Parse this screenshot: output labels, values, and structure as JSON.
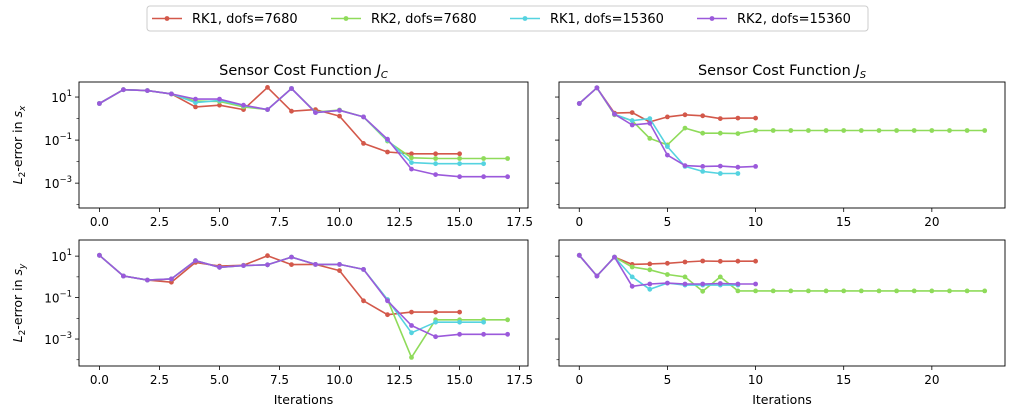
{
  "legend": {
    "placement": "top-center",
    "entries": [
      {
        "label": "RK1, dofs=7680",
        "color": "#d3584a"
      },
      {
        "label": "RK2, dofs=7680",
        "color": "#8fdb5a"
      },
      {
        "label": "RK1, dofs=15360",
        "color": "#55d3e0"
      },
      {
        "label": "RK2, dofs=15360",
        "color": "#9b59db"
      }
    ]
  },
  "xlabel": "Iterations",
  "chart_data": [
    {
      "type": "line",
      "panel": "top-left",
      "title": "Sensor Cost Function J_C",
      "title_text": "Sensor Cost Function ",
      "title_math": "J",
      "title_sub": "C",
      "ylabel_text": "-error in ",
      "ylabel_var": "s",
      "ylabel_sub": "x",
      "xlabel": "",
      "yscale": "log",
      "xlim": [
        -0.85,
        17.85
      ],
      "ylim": [
        7e-05,
        50
      ],
      "xticks": [
        0,
        2.5,
        5,
        7.5,
        10,
        12.5,
        15,
        17.5
      ],
      "xticklabels": [
        "0.0",
        "2.5",
        "5.0",
        "7.5",
        "10.0",
        "12.5",
        "15.0",
        "17.5"
      ],
      "yticks": [
        10,
        0.1,
        0.001
      ],
      "yticklabels": [
        {
          "base": "10",
          "exp": "1"
        },
        {
          "base": "10",
          "exp": "−1"
        },
        {
          "base": "10",
          "exp": "−3"
        }
      ],
      "series": [
        {
          "name": "RK1, dofs=7680",
          "color": "#d3584a",
          "x": [
            0,
            1,
            2,
            3,
            4,
            5,
            6,
            7,
            8,
            9,
            10,
            11,
            12,
            13,
            14,
            15
          ],
          "y": [
            5,
            22,
            20,
            14,
            3.5,
            4.2,
            2.6,
            28,
            2.2,
            2.6,
            1.3,
            0.07,
            0.028,
            0.023,
            0.023,
            0.023
          ]
        },
        {
          "name": "RK2, dofs=7680",
          "color": "#8fdb5a",
          "x": [
            0,
            1,
            2,
            3,
            4,
            5,
            6,
            7,
            8,
            9,
            10,
            11,
            12,
            13,
            14,
            15,
            16,
            17
          ],
          "y": [
            5,
            22,
            20,
            14,
            6.5,
            6.2,
            3.5,
            2.6,
            25,
            2.0,
            2.5,
            1.2,
            0.09,
            0.015,
            0.014,
            0.014,
            0.014,
            0.014
          ]
        },
        {
          "name": "RK1, dofs=15360",
          "color": "#55d3e0",
          "x": [
            0,
            1,
            2,
            3,
            4,
            5,
            6,
            7,
            8,
            9,
            10,
            11,
            12,
            13,
            14,
            15,
            16
          ],
          "y": [
            5,
            22,
            20,
            14,
            5.5,
            7.0,
            4.0,
            2.6,
            25,
            1.9,
            2.4,
            1.2,
            0.1,
            0.009,
            0.008,
            0.008,
            0.008
          ]
        },
        {
          "name": "RK2, dofs=15360",
          "color": "#9b59db",
          "x": [
            0,
            1,
            2,
            3,
            4,
            5,
            6,
            7,
            8,
            9,
            10,
            11,
            12,
            13,
            14,
            15,
            16,
            17
          ],
          "y": [
            5,
            22,
            20,
            14,
            8.0,
            8.0,
            4.2,
            2.6,
            25,
            1.9,
            2.4,
            1.2,
            0.11,
            0.0045,
            0.0025,
            0.002,
            0.002,
            0.002
          ]
        }
      ]
    },
    {
      "type": "line",
      "panel": "top-right",
      "title": "Sensor Cost Function J_S",
      "title_text": "Sensor Cost Function ",
      "title_math": "J",
      "title_sub": "S",
      "ylabel_text": "",
      "ylabel_var": "",
      "ylabel_sub": "",
      "xlabel": "",
      "yscale": "log",
      "xlim": [
        -1.15,
        24.15
      ],
      "ylim": [
        7e-05,
        50
      ],
      "xticks": [
        0,
        5,
        10,
        15,
        20
      ],
      "xticklabels": [
        "0",
        "5",
        "10",
        "15",
        "20"
      ],
      "yticks": [
        10,
        0.1,
        0.001
      ],
      "yticklabels": [],
      "series": [
        {
          "name": "RK1, dofs=7680",
          "color": "#d3584a",
          "x": [
            0,
            1,
            2,
            3,
            4,
            5,
            6,
            7,
            8,
            9,
            10
          ],
          "y": [
            5,
            27,
            1.8,
            1.9,
            0.7,
            1.2,
            1.5,
            1.35,
            1.0,
            1.05,
            1.05
          ]
        },
        {
          "name": "RK2, dofs=7680",
          "color": "#8fdb5a",
          "x": [
            0,
            1,
            2,
            3,
            4,
            5,
            6,
            7,
            8,
            9,
            10,
            11,
            12,
            13,
            14,
            15,
            16,
            17,
            18,
            19,
            20,
            21,
            22,
            23
          ],
          "y": [
            5,
            27,
            1.5,
            0.8,
            0.12,
            0.06,
            0.36,
            0.21,
            0.21,
            0.2,
            0.28,
            0.28,
            0.28,
            0.28,
            0.28,
            0.28,
            0.28,
            0.28,
            0.28,
            0.28,
            0.28,
            0.28,
            0.28,
            0.28
          ]
        },
        {
          "name": "RK1, dofs=15360",
          "color": "#55d3e0",
          "x": [
            0,
            1,
            2,
            3,
            4,
            5,
            6,
            7,
            8,
            9
          ],
          "y": [
            5,
            27,
            1.6,
            0.8,
            1.0,
            0.05,
            0.006,
            0.0035,
            0.0028,
            0.0028
          ]
        },
        {
          "name": "RK2, dofs=15360",
          "color": "#9b59db",
          "x": [
            0,
            1,
            2,
            3,
            4,
            5,
            6,
            7,
            8,
            9,
            10
          ],
          "y": [
            5,
            27,
            1.6,
            0.5,
            0.6,
            0.02,
            0.0065,
            0.006,
            0.0062,
            0.0055,
            0.006
          ]
        }
      ]
    },
    {
      "type": "line",
      "panel": "bottom-left",
      "title": "",
      "title_text": "",
      "title_math": "",
      "title_sub": "",
      "ylabel_text": "-error in ",
      "ylabel_var": "s",
      "ylabel_sub": "y",
      "xlabel": "Iterations",
      "yscale": "log",
      "xlim": [
        -0.85,
        17.85
      ],
      "ylim": [
        5e-05,
        60
      ],
      "xticks": [
        0,
        2.5,
        5,
        7.5,
        10,
        12.5,
        15,
        17.5
      ],
      "xticklabels": [
        "0.0",
        "2.5",
        "5.0",
        "7.5",
        "10.0",
        "12.5",
        "15.0",
        "17.5"
      ],
      "yticks": [
        10,
        0.1,
        0.001
      ],
      "yticklabels": [
        {
          "base": "10",
          "exp": "1"
        },
        {
          "base": "10",
          "exp": "−1"
        },
        {
          "base": "10",
          "exp": "−3"
        }
      ],
      "series": [
        {
          "name": "RK1, dofs=7680",
          "color": "#d3584a",
          "x": [
            0,
            1,
            2,
            3,
            4,
            5,
            6,
            7,
            8,
            9,
            10,
            11,
            12,
            13,
            14,
            15
          ],
          "y": [
            11,
            1.1,
            0.7,
            0.55,
            5,
            3.3,
            3.6,
            10.5,
            3.9,
            4.0,
            2.0,
            0.07,
            0.015,
            0.02,
            0.02,
            0.02
          ]
        },
        {
          "name": "RK2, dofs=7680",
          "color": "#8fdb5a",
          "x": [
            0,
            1,
            2,
            3,
            4,
            5,
            6,
            7,
            8,
            9,
            10,
            11,
            12,
            13,
            14,
            15,
            16,
            17
          ],
          "y": [
            11,
            1.1,
            0.7,
            0.8,
            6,
            2.9,
            3.5,
            3.8,
            9,
            4.0,
            4.0,
            2.3,
            0.08,
            0.00013,
            0.0085,
            0.0085,
            0.0085,
            0.0085
          ]
        },
        {
          "name": "RK1, dofs=15360",
          "color": "#55d3e0",
          "x": [
            0,
            1,
            2,
            3,
            4,
            5,
            6,
            7,
            8,
            9,
            10,
            11,
            12,
            13,
            14,
            15,
            16
          ],
          "y": [
            11,
            1.1,
            0.7,
            0.8,
            6,
            2.9,
            3.5,
            3.8,
            9,
            4.0,
            4.0,
            2.3,
            0.08,
            0.002,
            0.0065,
            0.0065,
            0.0065
          ]
        },
        {
          "name": "RK2, dofs=15360",
          "color": "#9b59db",
          "x": [
            0,
            1,
            2,
            3,
            4,
            5,
            6,
            7,
            8,
            9,
            10,
            11,
            12,
            13,
            14,
            15,
            16,
            17
          ],
          "y": [
            11,
            1.1,
            0.7,
            0.8,
            6,
            2.9,
            3.5,
            3.8,
            9,
            4.0,
            4.0,
            2.3,
            0.07,
            0.0045,
            0.0013,
            0.0017,
            0.0017,
            0.0017
          ]
        }
      ]
    },
    {
      "type": "line",
      "panel": "bottom-right",
      "title": "",
      "title_text": "",
      "title_math": "",
      "title_sub": "",
      "ylabel_text": "",
      "ylabel_var": "",
      "ylabel_sub": "",
      "xlabel": "Iterations",
      "yscale": "log",
      "xlim": [
        -1.15,
        24.15
      ],
      "ylim": [
        5e-05,
        60
      ],
      "xticks": [
        0,
        5,
        10,
        15,
        20
      ],
      "xticklabels": [
        "0",
        "5",
        "10",
        "15",
        "20"
      ],
      "yticks": [
        10,
        0.1,
        0.001
      ],
      "yticklabels": [],
      "series": [
        {
          "name": "RK1, dofs=7680",
          "color": "#d3584a",
          "x": [
            0,
            1,
            2,
            3,
            4,
            5,
            6,
            7,
            8,
            9,
            10
          ],
          "y": [
            11,
            1.1,
            9,
            4,
            4.2,
            4.5,
            5.2,
            5.8,
            5.6,
            5.7,
            5.7
          ]
        },
        {
          "name": "RK2, dofs=7680",
          "color": "#8fdb5a",
          "x": [
            0,
            1,
            2,
            3,
            4,
            5,
            6,
            7,
            8,
            9,
            10,
            11,
            12,
            13,
            14,
            15,
            16,
            17,
            18,
            19,
            20,
            21,
            22,
            23
          ],
          "y": [
            11,
            1.1,
            9,
            3,
            2.2,
            1.3,
            1.0,
            0.2,
            1.0,
            0.21,
            0.21,
            0.21,
            0.21,
            0.21,
            0.21,
            0.21,
            0.21,
            0.21,
            0.21,
            0.21,
            0.21,
            0.21,
            0.21,
            0.21
          ]
        },
        {
          "name": "RK1, dofs=15360",
          "color": "#55d3e0",
          "x": [
            0,
            1,
            2,
            3,
            4,
            5,
            6,
            7,
            8,
            9
          ],
          "y": [
            11,
            1.1,
            9,
            1.0,
            0.25,
            0.5,
            0.4,
            0.4,
            0.4,
            0.4
          ]
        },
        {
          "name": "RK2, dofs=15360",
          "color": "#9b59db",
          "x": [
            0,
            1,
            2,
            3,
            4,
            5,
            6,
            7,
            8,
            9,
            10
          ],
          "y": [
            11,
            1.1,
            9,
            0.35,
            0.45,
            0.5,
            0.45,
            0.45,
            0.48,
            0.45,
            0.45
          ]
        }
      ]
    }
  ]
}
